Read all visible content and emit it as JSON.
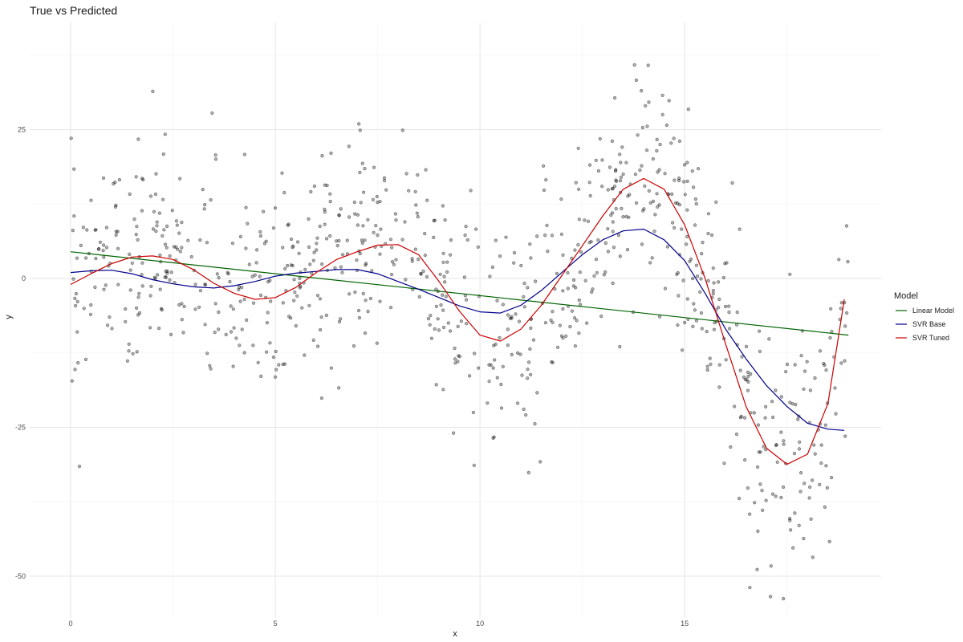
{
  "chart_data": {
    "type": "scatter",
    "title": "True vs Predicted",
    "xlabel": "x",
    "ylabel": "y",
    "xlim": [
      -1,
      19.8
    ],
    "ylim": [
      -57,
      43
    ],
    "x_ticks": [
      0,
      5,
      10,
      15
    ],
    "y_ticks": [
      -50,
      -25,
      0,
      25
    ],
    "x_minor": [
      2.5,
      7.5,
      12.5,
      17.5
    ],
    "y_minor": [
      -37.5,
      -12.5,
      12.5,
      37.5
    ],
    "grid": true,
    "legend_title": "Model",
    "legend_position": "right",
    "point_color": "#000000",
    "series": [
      {
        "name": "Linear Model",
        "color": "#006400",
        "x": [
          0,
          19.0
        ],
        "y": [
          4.5,
          -9.5
        ]
      },
      {
        "name": "SVR Base",
        "color": "#00008B",
        "x": [
          0,
          0.5,
          1.0,
          1.5,
          2.0,
          2.5,
          3.0,
          3.5,
          4.0,
          4.5,
          5.0,
          5.5,
          6.0,
          6.5,
          7.0,
          7.5,
          8.0,
          8.5,
          9.0,
          9.5,
          10.0,
          10.5,
          11.0,
          11.5,
          12.0,
          12.5,
          13.0,
          13.5,
          14.0,
          14.5,
          15.0,
          15.5,
          16.0,
          16.5,
          17.0,
          17.5,
          18.0,
          18.5,
          18.9
        ],
        "y": [
          1.0,
          1.3,
          1.4,
          0.8,
          -0.2,
          -0.9,
          -1.4,
          -1.6,
          -1.2,
          -0.5,
          0.4,
          0.9,
          1.2,
          1.5,
          1.5,
          0.8,
          -0.5,
          -1.8,
          -3.2,
          -4.6,
          -5.6,
          -5.8,
          -4.5,
          -2.0,
          1.0,
          4.0,
          6.5,
          8.0,
          8.3,
          6.5,
          3.0,
          -2.5,
          -8.5,
          -13.5,
          -18.0,
          -21.5,
          -24.3,
          -25.3,
          -25.5
        ]
      },
      {
        "name": "SVR Tuned",
        "color": "#CD0000",
        "x": [
          0,
          0.5,
          1.0,
          1.5,
          2.0,
          2.5,
          3.0,
          3.5,
          4.0,
          4.5,
          5.0,
          5.5,
          6.0,
          6.5,
          7.0,
          7.5,
          8.0,
          8.5,
          9.0,
          9.5,
          10.0,
          10.5,
          11.0,
          11.5,
          12.0,
          12.5,
          13.0,
          13.5,
          14.0,
          14.5,
          15.0,
          15.5,
          16.0,
          16.5,
          17.0,
          17.5,
          18.0,
          18.5,
          18.9
        ],
        "y": [
          -1.0,
          0.8,
          2.5,
          3.6,
          3.8,
          3.2,
          1.5,
          -0.8,
          -2.5,
          -3.5,
          -3.2,
          -1.5,
          1.0,
          3.2,
          4.5,
          5.6,
          5.7,
          4.0,
          -0.5,
          -5.5,
          -9.5,
          -10.5,
          -8.5,
          -4.5,
          0.5,
          5.5,
          10.5,
          15.0,
          16.8,
          15.0,
          9.0,
          0.0,
          -11.0,
          -21.5,
          -28.5,
          -31.2,
          -29.5,
          -21.0,
          -3.5
        ]
      }
    ]
  }
}
